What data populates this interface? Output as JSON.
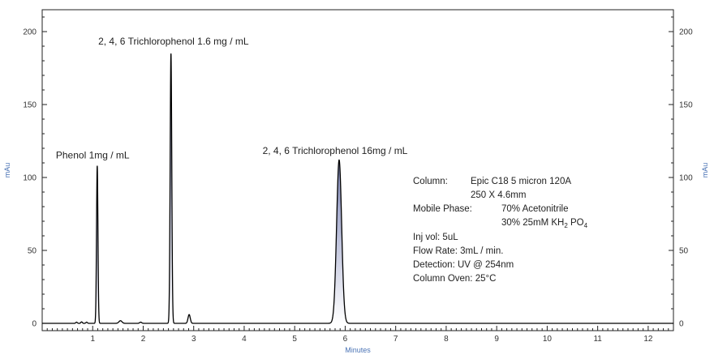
{
  "chart_data": {
    "type": "line",
    "title": "",
    "xlabel": "Minutes",
    "ylabel": "mAu",
    "y2label": "mAu",
    "xlim": [
      0.0,
      12.5
    ],
    "ylim": [
      -5,
      215
    ],
    "xticks": [
      1,
      2,
      3,
      4,
      5,
      6,
      7,
      8,
      9,
      10,
      11,
      12
    ],
    "yticks": [
      0,
      50,
      100,
      150,
      200
    ],
    "grid": false,
    "line_color": "#000000",
    "fill_color_top": "#7f87b8",
    "axis_title_color": "#4a73b5",
    "series": [
      {
        "peaks": [
          {
            "rt": 0.68,
            "height": 0.8,
            "width": 0.015
          },
          {
            "rt": 0.78,
            "height": 1.0,
            "width": 0.015
          },
          {
            "rt": 0.88,
            "height": 0.8,
            "width": 0.015
          },
          {
            "rt": 1.09,
            "height": 108,
            "width": 0.014
          },
          {
            "rt": 1.55,
            "height": 1.8,
            "width": 0.03
          },
          {
            "rt": 1.95,
            "height": 0.8,
            "width": 0.02
          },
          {
            "rt": 2.55,
            "height": 185,
            "width": 0.016
          },
          {
            "rt": 2.91,
            "height": 6,
            "width": 0.022
          },
          {
            "rt": 5.88,
            "height": 112,
            "width": 0.05
          }
        ]
      }
    ],
    "annotations": [
      {
        "text": "Phenol 1mg / mL",
        "x": 1.0,
        "y": 113
      },
      {
        "text": "2, 4, 6 Trichlorophenol 1.6 mg / mL",
        "x": 2.6,
        "y": 191
      },
      {
        "text": "2, 4, 6 Trichlorophenol 16mg / mL",
        "x": 5.8,
        "y": 116
      }
    ]
  },
  "conditions": {
    "column_label": "Column:",
    "column_line1": "Epic C18 5 micron 120A",
    "column_line2": "250 X 4.6mm",
    "mobile_phase_label": "Mobile Phase:",
    "mobile_phase_line1": "70% Acetonitrile",
    "mobile_phase_line2": "30% 25mM KH",
    "mobile_phase_sub1": "2",
    "mobile_phase_po": " PO",
    "mobile_phase_sub2": "4",
    "inj_vol": "Inj vol:   5uL",
    "flow_rate": "Flow Rate:   3mL / min.",
    "detection": "Detection:   UV @ 254nm",
    "column_oven": "Column Oven:   25°C"
  }
}
